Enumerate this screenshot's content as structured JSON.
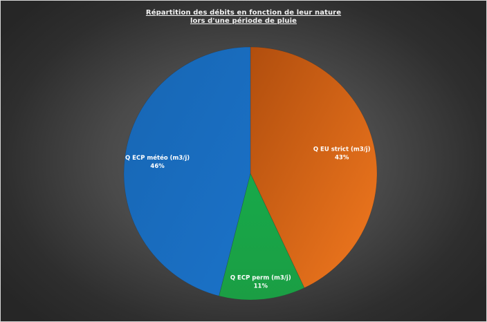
{
  "chart_data": {
    "type": "pie",
    "title_lines": [
      "Répartition des débits en fonction de leur nature",
      "lors d'une période de pluie"
    ],
    "slices": [
      {
        "name": "Q EU strict (m3/j)",
        "value": 43,
        "label": "43%",
        "color": "#E8711F"
      },
      {
        "name": "Q ECP perm (m3/j)",
        "value": 11,
        "label": "11%",
        "color": "#1FA84A"
      },
      {
        "name": "Q ECP météo (m3/j)",
        "value": 46,
        "label": "46%",
        "color": "#1B6FC4"
      }
    ],
    "start_angle_deg": 0,
    "direction": "clockwise",
    "data_labels": "inside",
    "legend": "none"
  }
}
